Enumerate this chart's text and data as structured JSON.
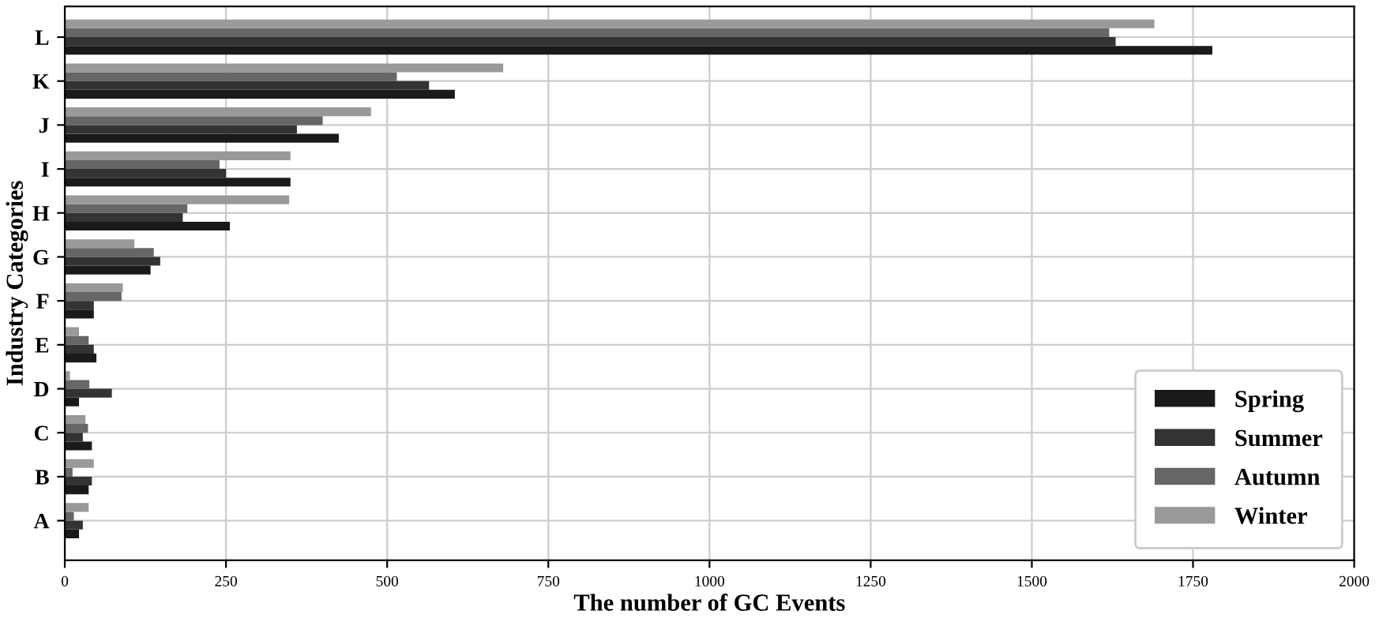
{
  "chart_data": {
    "type": "bar",
    "orientation": "horizontal",
    "xlabel": "The number of GC Events",
    "ylabel": "Industry Categories",
    "categories": [
      "L",
      "K",
      "J",
      "I",
      "H",
      "G",
      "F",
      "E",
      "D",
      "C",
      "B",
      "A"
    ],
    "series": [
      {
        "name": "Spring",
        "color": "#1a1a1a",
        "values": [
          1780,
          605,
          425,
          350,
          256,
          133,
          45,
          49,
          22,
          42,
          37,
          22
        ]
      },
      {
        "name": "Summer",
        "color": "#333333",
        "values": [
          1630,
          565,
          360,
          250,
          183,
          148,
          45,
          45,
          73,
          28,
          42,
          28
        ]
      },
      {
        "name": "Autumn",
        "color": "#666666",
        "values": [
          1620,
          515,
          400,
          240,
          190,
          138,
          88,
          37,
          38,
          36,
          12,
          14
        ]
      },
      {
        "name": "Winter",
        "color": "#999999",
        "values": [
          1690,
          680,
          475,
          350,
          348,
          108,
          90,
          22,
          8,
          32,
          45,
          37
        ]
      }
    ],
    "xlim": [
      0,
      2000
    ],
    "xticks": [
      0,
      250,
      500,
      750,
      1000,
      1250,
      1500,
      1750,
      2000
    ],
    "grid": true,
    "legend": "bottom right"
  }
}
